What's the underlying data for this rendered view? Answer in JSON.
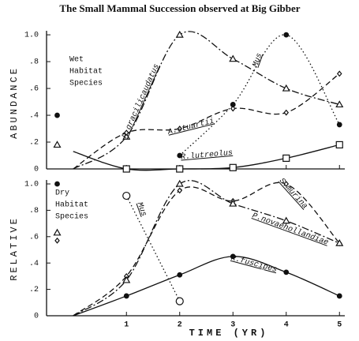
{
  "chart_data": [
    {
      "type": "line",
      "title": "The Small Mammal Succession observed at Big Gibber",
      "ylabel": "ABUNDANCE",
      "annotation": [
        "Wet",
        "Habitat",
        "Species"
      ],
      "x": [
        0,
        1,
        2,
        3,
        4,
        5
      ],
      "xlim": [
        -0.5,
        5.1
      ],
      "ylim": [
        0,
        1.03
      ],
      "xticks": [
        1,
        2,
        3,
        4,
        5
      ],
      "show_xtick_labels": false,
      "yticks": [
        0,
        {
          "value": 0.2,
          "label": ".2"
        },
        {
          "value": 0.4,
          "label": ".4"
        },
        {
          "value": 0.6,
          "label": ".6"
        },
        {
          "value": 0.8,
          "label": ".8"
        },
        {
          "value": 1,
          "label": "1.0"
        }
      ],
      "pre_x": -0.3,
      "series": [
        {
          "name": "P.gracilicaudatus",
          "color": "#111111",
          "dash": "dashdot",
          "symbol": "triangle",
          "pre": 0.18,
          "values": [
            0,
            0.24,
            1.0,
            0.82,
            0.6,
            0.48
          ]
        },
        {
          "name": "A.stuartii",
          "color": "#111111",
          "dash": "dashed",
          "symbol": "diamond",
          "values": [
            0,
            0.27,
            0.3,
            0.45,
            0.42,
            0.71
          ]
        },
        {
          "name": "Mus",
          "color": "#111111",
          "dash": "dotted",
          "symbol": "circle",
          "pre": 0.4,
          "values": [
            null,
            null,
            0.1,
            0.48,
            1.0,
            0.33
          ]
        },
        {
          "name": "R.lutreolus",
          "color": "#111111",
          "dash": "solid",
          "symbol": "square",
          "values": [
            0.13,
            0,
            0,
            0.01,
            0.08,
            0.18
          ]
        }
      ]
    },
    {
      "type": "line",
      "ylabel": "RELATIVE",
      "xlabel": "TIME (YR)",
      "annotation": [
        "Dry",
        "Habitat",
        "Species"
      ],
      "x": [
        0,
        1,
        2,
        3,
        4,
        5
      ],
      "xlim": [
        -0.5,
        5.1
      ],
      "ylim": [
        0,
        1.03
      ],
      "xticks": [
        1,
        2,
        3,
        4,
        5
      ],
      "show_xtick_labels": true,
      "yticks": [
        0,
        {
          "value": 0.2,
          "label": ".2"
        },
        {
          "value": 0.4,
          "label": ".4"
        },
        {
          "value": 0.6,
          "label": ".6"
        },
        {
          "value": 0.8,
          "label": ".8"
        },
        {
          "value": 1,
          "label": "1.0"
        }
      ],
      "pre_x": -0.3,
      "series": [
        {
          "name": "Mus",
          "color": "#111111",
          "dash": "dotted",
          "symbol": "open-circle",
          "values": [
            null,
            0.91,
            0.11,
            null,
            null,
            null
          ]
        },
        {
          "name": "S.murina",
          "color": "#111111",
          "dash": "dashed",
          "symbol": "diamond",
          "pre": 0.57,
          "values": [
            0,
            0.3,
            0.95,
            0.87,
            1.0,
            0.55
          ]
        },
        {
          "name": "P.novaehollandiae",
          "color": "#111111",
          "dash": "dashdot",
          "symbol": "triangle",
          "pre": 0.63,
          "values": [
            0,
            0.27,
            1.0,
            0.85,
            0.72,
            0.55
          ]
        },
        {
          "name": "R.fuscipes",
          "color": "#111111",
          "dash": "solid",
          "symbol": "circle",
          "pre": 1.0,
          "values": [
            0,
            0.15,
            0.31,
            0.45,
            0.33,
            0.15
          ]
        }
      ]
    }
  ]
}
